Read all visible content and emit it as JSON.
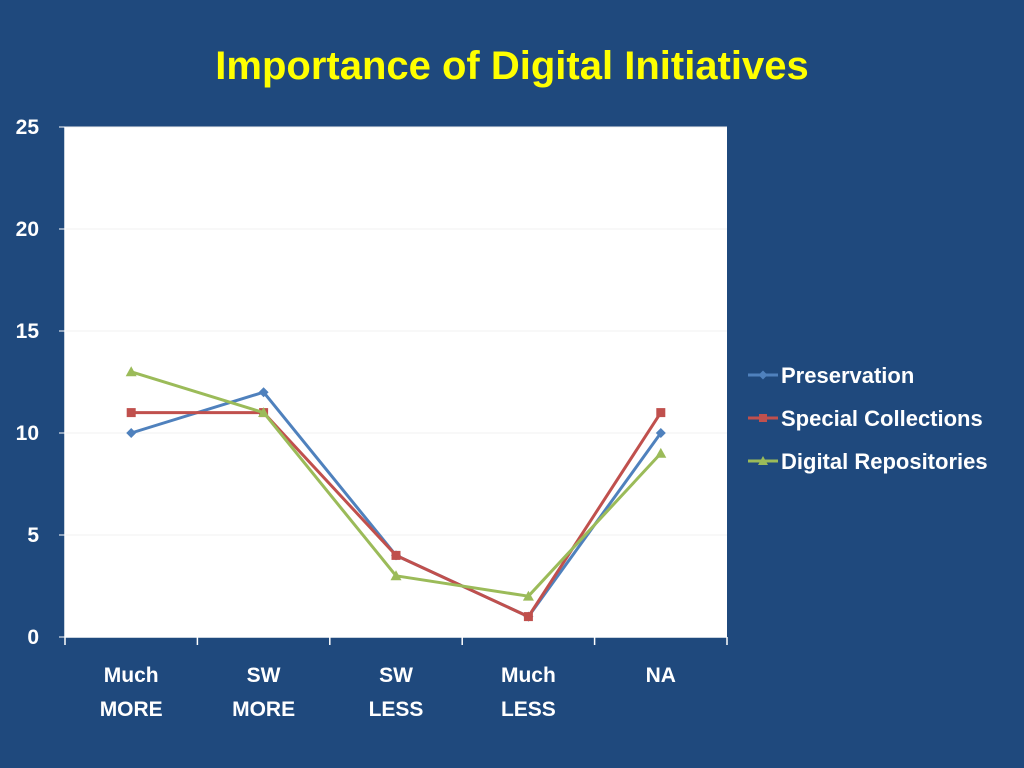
{
  "slide": {
    "title": "Importance of Digital Initiatives"
  },
  "chart_data": {
    "type": "line",
    "title": "",
    "xlabel": "",
    "ylabel": "",
    "categories": [
      [
        "Much",
        "MORE"
      ],
      [
        "SW",
        "MORE"
      ],
      [
        "SW",
        "LESS"
      ],
      [
        "Much",
        "LESS"
      ],
      [
        "NA"
      ]
    ],
    "ylim": [
      0,
      25
    ],
    "yticks": [
      0,
      5,
      10,
      15,
      20,
      25
    ],
    "grid": true,
    "legend_position": "right",
    "series": [
      {
        "name": "Preservation",
        "values": [
          10,
          12,
          4,
          1,
          10
        ],
        "color": "#4f81bd",
        "marker": "diamond"
      },
      {
        "name": "Special Collections",
        "values": [
          11,
          11,
          4,
          1,
          11
        ],
        "color": "#c0504d",
        "marker": "square"
      },
      {
        "name": "Digital Repositories",
        "values": [
          13,
          11,
          3,
          2,
          9
        ],
        "color": "#9bbb59",
        "marker": "triangle"
      }
    ]
  },
  "colors": {
    "background": "#1f497d",
    "title": "#ffff00",
    "plot_area": "#ffffff",
    "text": "#ffffff"
  }
}
